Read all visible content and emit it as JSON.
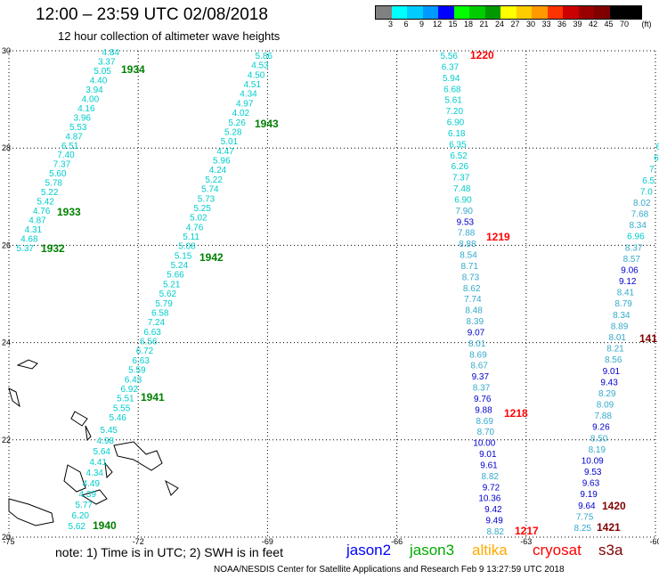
{
  "header": {
    "title": "12:00  –  23:59 UTC 02/08/2018",
    "subtitle": "12 hour collection of altimeter wave heights"
  },
  "legend": {
    "unit": "(ft)",
    "labels": [
      "3",
      "6",
      "9",
      "12",
      "15",
      "18",
      "21",
      "24",
      "27",
      "30",
      "33",
      "36",
      "39",
      "42",
      "45",
      "70"
    ],
    "colors": [
      "#808080",
      "#00ffff",
      "#00ccff",
      "#0099ff",
      "#0000ff",
      "#00ff00",
      "#00cc00",
      "#009900",
      "#ffff00",
      "#ffcc00",
      "#ff9900",
      "#ff3300",
      "#cc0000",
      "#990000",
      "#800000",
      "#000000",
      "#000000"
    ]
  },
  "map": {
    "lon_labels": [
      "-75",
      "-72",
      "-69",
      "-66",
      "-63",
      "-60"
    ],
    "lat_labels": [
      "20",
      "22",
      "24",
      "26",
      "28",
      "30"
    ]
  },
  "time_labels": [
    {
      "text": "1934",
      "color": "#008000"
    },
    {
      "text": "1943",
      "color": "#008000"
    },
    {
      "text": "1933",
      "color": "#008000"
    },
    {
      "text": "1932",
      "color": "#008000"
    },
    {
      "text": "1942",
      "color": "#008000"
    },
    {
      "text": "1941",
      "color": "#008000"
    },
    {
      "text": "1940",
      "color": "#008000"
    },
    {
      "text": "1220",
      "color": "#ff0000"
    },
    {
      "text": "1219",
      "color": "#ff0000"
    },
    {
      "text": "1218",
      "color": "#ff0000"
    },
    {
      "text": "1217",
      "color": "#ff0000"
    },
    {
      "text": "1420",
      "color": "#800000"
    },
    {
      "text": "1421",
      "color": "#800000"
    },
    {
      "text": "141",
      "color": "#800000"
    }
  ],
  "tracks": [
    {
      "values": [
        "4.84",
        "3.37",
        "5.05",
        "4.40",
        "3.94",
        "4.00",
        "4.16",
        "3.96",
        "5.53",
        "4.87",
        "6.51",
        "7.40",
        "7.37",
        "5.60",
        "5.78",
        "5.22",
        "5.42",
        "4.76",
        "4.87",
        "4.31",
        "4.68",
        "5.37"
      ]
    },
    {
      "values": [
        "5.86",
        "4.53",
        "4.50",
        "4.51",
        "4.34",
        "4.97",
        "4.02",
        "5.26",
        "5.28",
        "5.01",
        "4.47",
        "5.96",
        "4.24",
        "5.22",
        "5.74",
        "5.73",
        "5.25",
        "5.02",
        "4.76",
        "5.11",
        "5.08",
        "5.15",
        "5.24",
        "5.66",
        "5.21",
        "5.62",
        "5.79",
        "6.58",
        "7.24",
        "6.63",
        "6.56",
        "6.72",
        "6.63",
        "5.59",
        "6.43",
        "6.92",
        "5.51",
        "5.55",
        "5.46"
      ]
    },
    {
      "values": [
        "5.45",
        "4.98",
        "5.64",
        "4.41",
        "4.34",
        "4.49",
        "4.39",
        "5.77",
        "6.20",
        "5.62"
      ]
    },
    {
      "values": [
        "5.56",
        "6.37",
        "5.94",
        "6.68",
        "5.61",
        "7.20",
        "6.90",
        "6.18",
        "6.35",
        "6.52",
        "6.26",
        "7.37",
        "7.48",
        "6.90",
        "7.90",
        "9.53",
        "7.88",
        "8.88",
        "8.54",
        "8.71",
        "8.73",
        "8.62",
        "7.74",
        "8.48",
        "8.39",
        "9.07",
        "8.01",
        "8.69",
        "8.67",
        "9.37",
        "8.37",
        "9.76",
        "9.88",
        "8.69",
        "8.70",
        "10.00",
        "9.01",
        "9.61",
        "8.82",
        "9.72",
        "10.36",
        "9.42",
        "9.49",
        "8.82"
      ]
    },
    {
      "values": [
        "6",
        "6",
        "7.",
        "6.5",
        "7.0",
        "8.02",
        "7.68",
        "8.34",
        "6.96",
        "8.37",
        "8.57",
        "9.06",
        "9.12",
        "8.41",
        "8.79",
        "8.34",
        "8.89",
        "8.01",
        "8.21",
        "8.56",
        "9.01",
        "9.43",
        "8.29",
        "8.09",
        "7.88",
        "9.26",
        "8.50",
        "8.19",
        "10.09",
        "9.53",
        "9.63",
        "9.19",
        "9.64",
        "7.75",
        "8.25"
      ]
    }
  ],
  "note": "note:  1) Time is in UTC;  2) SWH is in feet",
  "missions": [
    {
      "name": "jason2",
      "color": "#0000ff"
    },
    {
      "name": "jason3",
      "color": "#00aa00"
    },
    {
      "name": "altika",
      "color": "#ffaa00"
    },
    {
      "name": "cryosat",
      "color": "#ff0000"
    },
    {
      "name": "s3a",
      "color": "#800000"
    }
  ],
  "footer": "NOAA/NESDIS Center for Satellite Applications and Research   Feb  9 13:27:59 UTC 2018"
}
